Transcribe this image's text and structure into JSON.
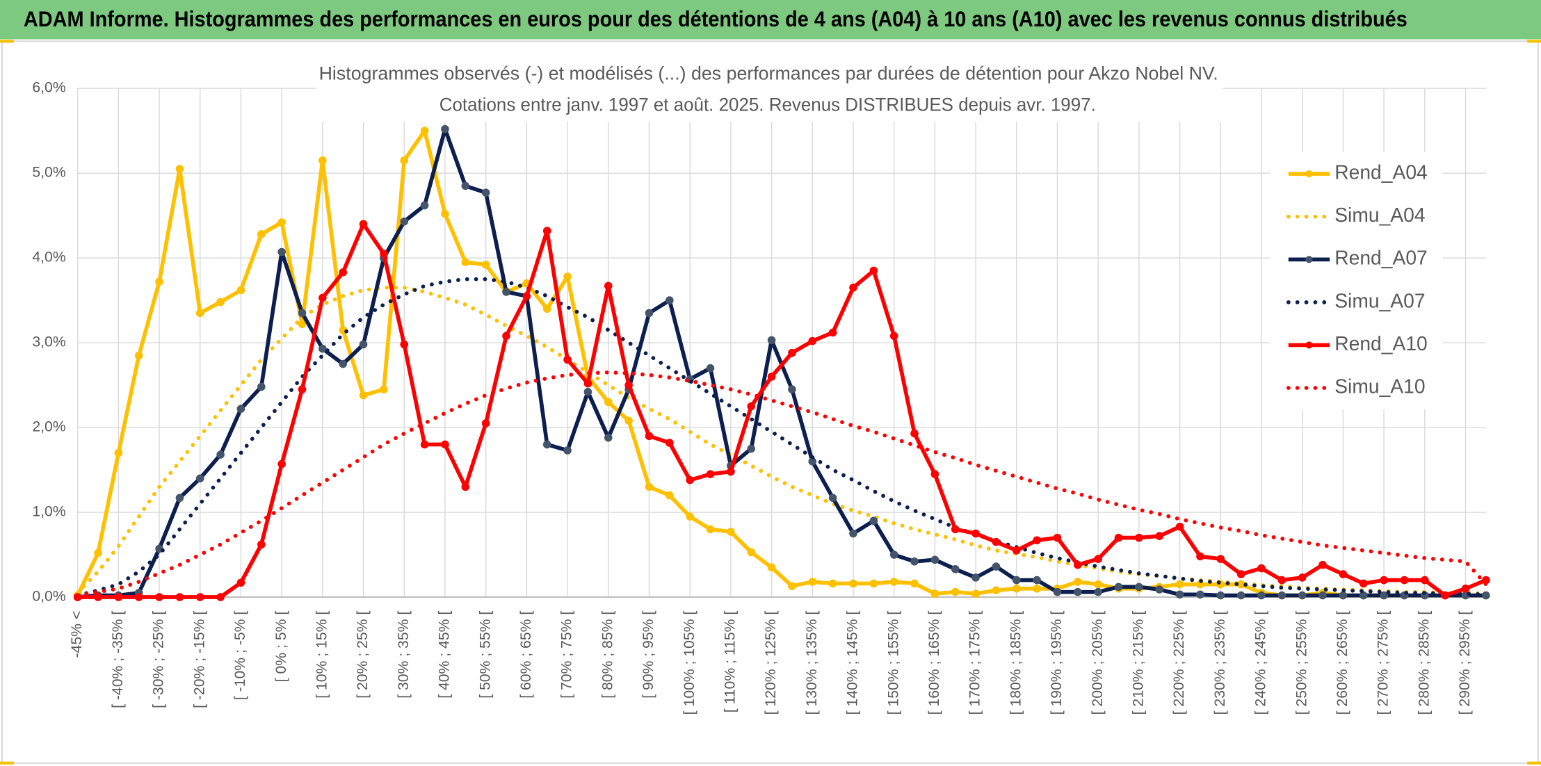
{
  "header": {
    "title": "ADAM Informe. Histogrammes des performances en euros pour des détentions de 4 ans (A04) à 10 ans (A10) avec les revenus connus distribués"
  },
  "chart_data": {
    "type": "line",
    "title": "Histogrammes observés (-) et modélisés (...) des performances par durées de détention pour Akzo Nobel NV.",
    "subtitle": "Cotations entre janv. 1997 et août. 2025. Revenus DISTRIBUES depuis avr. 1997.",
    "categories": [
      "-45% <",
      null,
      "[ -40% ; -35% [",
      null,
      "[ -30% ; -25% [",
      null,
      "[ -20% ; -15% [",
      null,
      "[ -10% ; -5% [",
      null,
      "[ 0% ; 5% [",
      null,
      "[ 10% ; 15% [",
      null,
      "[ 20% ; 25% [",
      null,
      "[ 30% ; 35% [",
      null,
      "[ 40% ; 45% [",
      null,
      "[ 50% ; 55% [",
      null,
      "[ 60% ; 65% [",
      null,
      "[ 70% ; 75% [",
      null,
      "[ 80% ; 85% [",
      null,
      "[ 90% ; 95% [",
      null,
      "[ 100% ; 105% [",
      null,
      "[ 110% ; 115% [",
      null,
      "[ 120% ; 125% [",
      null,
      "[ 130% ; 135% [",
      null,
      "[ 140% ; 145% [",
      null,
      "[ 150% ; 155% [",
      null,
      "[ 160% ; 165% [",
      null,
      "[ 170% ; 175% [",
      null,
      "[ 180% ; 185% [",
      null,
      "[ 190% ; 195% [",
      null,
      "[ 200% ; 205% [",
      null,
      "[ 210% ; 215% [",
      null,
      "[ 220% ; 225% [",
      null,
      "[ 230% ; 235% [",
      null,
      "[ 240% ; 245% [",
      null,
      "[ 250% ; 255% [",
      null,
      "[ 260% ; 265% [",
      null,
      "[ 270% ; 275% [",
      null,
      "[ 280% ; 285% [",
      null,
      "[ 290% ; 295% [",
      null
    ],
    "ylim": [
      0,
      6
    ],
    "yticks": [
      {
        "value": 0,
        "label": "0,0%"
      },
      {
        "value": 1,
        "label": "1,0%"
      },
      {
        "value": 2,
        "label": "2,0%"
      },
      {
        "value": 3,
        "label": "3,0%"
      },
      {
        "value": 4,
        "label": "4,0%"
      },
      {
        "value": 5,
        "label": "5,0%"
      },
      {
        "value": 6,
        "label": "6,0%"
      }
    ],
    "grid": true,
    "legend": "right",
    "series": [
      {
        "name": "Rend_A04",
        "color": "#FFC000",
        "line_style": "solid",
        "marker": true,
        "values": [
          0.02,
          0.52,
          1.7,
          2.85,
          3.72,
          5.05,
          3.35,
          3.48,
          3.62,
          4.28,
          4.42,
          3.22,
          5.15,
          3.15,
          2.38,
          2.45,
          5.15,
          5.5,
          4.52,
          3.95,
          3.92,
          3.6,
          3.7,
          3.4,
          3.78,
          2.6,
          2.3,
          2.08,
          1.3,
          1.2,
          0.95,
          0.8,
          0.77,
          0.53,
          0.35,
          0.13,
          0.18,
          0.16,
          0.16,
          0.16,
          0.18,
          0.16,
          0.04,
          0.06,
          0.04,
          0.08,
          0.1,
          0.1,
          0.1,
          0.18,
          0.15,
          0.1,
          0.1,
          0.12,
          0.15,
          0.15,
          0.15,
          0.15,
          0.05,
          0.02,
          0.02,
          0.05,
          0.02,
          0.02,
          0.02,
          0.02,
          0.02,
          0.02,
          0.02,
          0.02
        ]
      },
      {
        "name": "Simu_A04",
        "color": "#FFC000",
        "line_style": "dotted",
        "marker": false,
        "values": [
          0.05,
          0.3,
          0.6,
          0.95,
          1.3,
          1.6,
          1.9,
          2.2,
          2.5,
          2.8,
          3.05,
          3.3,
          3.45,
          3.55,
          3.62,
          3.65,
          3.65,
          3.6,
          3.53,
          3.45,
          3.33,
          3.2,
          3.08,
          2.95,
          2.8,
          2.65,
          2.5,
          2.35,
          2.22,
          2.1,
          1.95,
          1.8,
          1.68,
          1.55,
          1.42,
          1.3,
          1.2,
          1.1,
          1.02,
          0.95,
          0.87,
          0.8,
          0.74,
          0.68,
          0.61,
          0.55,
          0.51,
          0.47,
          0.42,
          0.38,
          0.34,
          0.3,
          0.27,
          0.25,
          0.22,
          0.2,
          0.18,
          0.16,
          0.14,
          0.13,
          0.11,
          0.1,
          0.09,
          0.08,
          0.07,
          0.06,
          0.06,
          0.05,
          0.05,
          0.04
        ]
      },
      {
        "name": "Rend_A07",
        "color": "#0D1F4F",
        "marker_color": "#44546A",
        "line_style": "solid",
        "marker": true,
        "values": [
          0,
          0.02,
          0.02,
          0.05,
          0.57,
          1.17,
          1.4,
          1.68,
          2.22,
          2.48,
          4.07,
          3.35,
          2.93,
          2.75,
          2.98,
          4.0,
          4.43,
          4.62,
          5.52,
          4.85,
          4.77,
          3.6,
          3.55,
          1.8,
          1.73,
          2.42,
          1.88,
          2.45,
          3.35,
          3.5,
          2.57,
          2.7,
          1.55,
          1.75,
          3.03,
          2.45,
          1.6,
          1.17,
          0.75,
          0.9,
          0.5,
          0.42,
          0.44,
          0.33,
          0.23,
          0.36,
          0.2,
          0.2,
          0.06,
          0.06,
          0.06,
          0.12,
          0.12,
          0.09,
          0.03,
          0.03,
          0.02,
          0.02,
          0.02,
          0.02,
          0.02,
          0.02,
          0.02,
          0.02,
          0.02,
          0.02,
          0.02,
          0.02,
          0.02,
          0.02
        ]
      },
      {
        "name": "Simu_A07",
        "color": "#0D1F4F",
        "line_style": "dotted",
        "marker": false,
        "values": [
          0.02,
          0.08,
          0.15,
          0.3,
          0.5,
          0.8,
          1.1,
          1.4,
          1.7,
          2.0,
          2.3,
          2.6,
          2.85,
          3.1,
          3.3,
          3.45,
          3.57,
          3.67,
          3.72,
          3.75,
          3.75,
          3.72,
          3.65,
          3.55,
          3.42,
          3.3,
          3.15,
          3.0,
          2.85,
          2.7,
          2.55,
          2.4,
          2.25,
          2.1,
          1.95,
          1.8,
          1.65,
          1.5,
          1.38,
          1.25,
          1.13,
          1.02,
          0.92,
          0.82,
          0.74,
          0.66,
          0.59,
          0.52,
          0.46,
          0.41,
          0.36,
          0.32,
          0.28,
          0.25,
          0.22,
          0.19,
          0.17,
          0.15,
          0.13,
          0.11,
          0.1,
          0.09,
          0.08,
          0.07,
          0.06,
          0.05,
          0.05,
          0.04,
          0.04,
          0.03
        ]
      },
      {
        "name": "Rend_A10",
        "color": "#FF0000",
        "line_style": "solid",
        "marker": true,
        "values": [
          0,
          0,
          0,
          0,
          0,
          0,
          0,
          0,
          0.17,
          0.62,
          1.57,
          2.45,
          3.53,
          3.83,
          4.4,
          4.05,
          2.98,
          1.8,
          1.8,
          1.3,
          2.05,
          3.08,
          3.55,
          4.32,
          2.8,
          2.52,
          3.67,
          2.5,
          1.9,
          1.82,
          1.38,
          1.45,
          1.48,
          2.25,
          2.6,
          2.88,
          3.02,
          3.12,
          3.65,
          3.85,
          3.08,
          1.93,
          1.45,
          0.8,
          0.75,
          0.65,
          0.55,
          0.67,
          0.7,
          0.38,
          0.45,
          0.7,
          0.7,
          0.72,
          0.83,
          0.48,
          0.45,
          0.27,
          0.34,
          0.2,
          0.23,
          0.38,
          0.27,
          0.16,
          0.2,
          0.2,
          0.2,
          0.02,
          0.1,
          0.2
        ]
      },
      {
        "name": "Simu_A10",
        "color": "#FF0000",
        "line_style": "dotted",
        "marker": false,
        "values": [
          0.02,
          0.06,
          0.1,
          0.18,
          0.28,
          0.38,
          0.5,
          0.62,
          0.76,
          0.9,
          1.05,
          1.2,
          1.35,
          1.5,
          1.65,
          1.8,
          1.93,
          2.05,
          2.17,
          2.28,
          2.38,
          2.46,
          2.53,
          2.58,
          2.62,
          2.64,
          2.65,
          2.64,
          2.62,
          2.59,
          2.55,
          2.5,
          2.45,
          2.39,
          2.32,
          2.25,
          2.18,
          2.1,
          2.02,
          1.95,
          1.87,
          1.79,
          1.71,
          1.64,
          1.56,
          1.49,
          1.42,
          1.35,
          1.28,
          1.22,
          1.15,
          1.09,
          1.03,
          0.98,
          0.92,
          0.87,
          0.82,
          0.78,
          0.73,
          0.69,
          0.65,
          0.61,
          0.58,
          0.55,
          0.52,
          0.49,
          0.46,
          0.44,
          0.42,
          0.15
        ]
      }
    ]
  }
}
